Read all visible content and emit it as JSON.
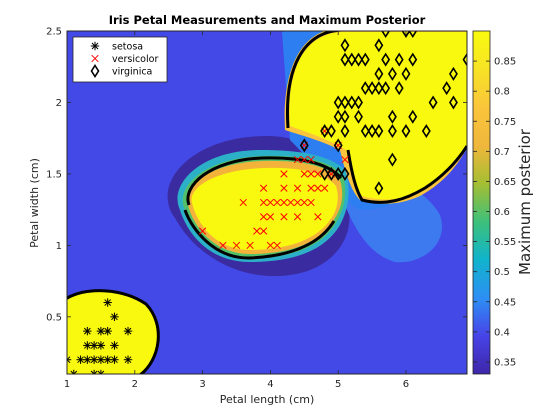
{
  "chart_data": {
    "type": "scatter",
    "title": "Iris Petal Measurements and Maximum Posterior",
    "xlabel": "Petal length (cm)",
    "ylabel": "Petal width (cm)",
    "xlim": [
      1,
      6.9
    ],
    "ylim": [
      0.1,
      2.5
    ],
    "x_ticks": [
      1,
      2,
      3,
      4,
      5,
      6
    ],
    "y_ticks": [
      0.5,
      1,
      1.5,
      2,
      2.5
    ],
    "grid": false,
    "legend_position": "top-left",
    "background_contour": "maximum posterior probability (filled contours)",
    "colorbar": {
      "label": "Maximum posterior",
      "range": [
        0.33,
        0.9
      ],
      "ticks": [
        0.35,
        0.4,
        0.45,
        0.5,
        0.55,
        0.6,
        0.65,
        0.7,
        0.75,
        0.8,
        0.85
      ],
      "colormap": [
        "#3e26a8",
        "#4744e8",
        "#2d8ff4",
        "#10b4cc",
        "#3ec07a",
        "#a5be32",
        "#f0b73c",
        "#fac53b",
        "#f7e325",
        "#f9fb0e"
      ]
    },
    "series": [
      {
        "name": "setosa",
        "marker": "asterisk",
        "color": "#000000",
        "points": [
          [
            1.0,
            0.2
          ],
          [
            1.1,
            0.1
          ],
          [
            1.2,
            0.2
          ],
          [
            1.3,
            0.2
          ],
          [
            1.3,
            0.3
          ],
          [
            1.3,
            0.4
          ],
          [
            1.4,
            0.1
          ],
          [
            1.4,
            0.2
          ],
          [
            1.4,
            0.3
          ],
          [
            1.5,
            0.1
          ],
          [
            1.5,
            0.2
          ],
          [
            1.5,
            0.3
          ],
          [
            1.5,
            0.4
          ],
          [
            1.6,
            0.2
          ],
          [
            1.6,
            0.4
          ],
          [
            1.6,
            0.6
          ],
          [
            1.7,
            0.2
          ],
          [
            1.7,
            0.3
          ],
          [
            1.7,
            0.5
          ],
          [
            1.9,
            0.2
          ],
          [
            1.9,
            0.4
          ]
        ]
      },
      {
        "name": "versicolor",
        "marker": "x",
        "color": "#ff0000",
        "points": [
          [
            3.0,
            1.1
          ],
          [
            3.3,
            1.0
          ],
          [
            3.5,
            1.0
          ],
          [
            3.6,
            1.3
          ],
          [
            3.7,
            1.0
          ],
          [
            3.8,
            1.1
          ],
          [
            3.9,
            1.1
          ],
          [
            3.9,
            1.2
          ],
          [
            3.9,
            1.4
          ],
          [
            4.0,
            1.0
          ],
          [
            4.0,
            1.2
          ],
          [
            4.0,
            1.3
          ],
          [
            4.1,
            1.0
          ],
          [
            4.1,
            1.3
          ],
          [
            4.2,
            1.2
          ],
          [
            4.2,
            1.3
          ],
          [
            4.2,
            1.5
          ],
          [
            4.3,
            1.3
          ],
          [
            4.4,
            1.2
          ],
          [
            4.4,
            1.3
          ],
          [
            4.4,
            1.4
          ],
          [
            4.5,
            1.3
          ],
          [
            4.5,
            1.5
          ],
          [
            4.5,
            1.6
          ],
          [
            4.6,
            1.3
          ],
          [
            4.6,
            1.4
          ],
          [
            4.6,
            1.5
          ],
          [
            4.7,
            1.2
          ],
          [
            4.7,
            1.4
          ],
          [
            4.7,
            1.5
          ],
          [
            4.8,
            1.4
          ],
          [
            4.8,
            1.8
          ],
          [
            4.9,
            1.5
          ],
          [
            5.0,
            1.7
          ],
          [
            5.1,
            1.6
          ],
          [
            4.5,
            1.7
          ],
          [
            4.4,
            1.6
          ],
          [
            4.2,
            1.4
          ],
          [
            3.9,
            1.3
          ],
          [
            4.6,
            1.6
          ]
        ]
      },
      {
        "name": "virginica",
        "marker": "diamond",
        "color": "#000000",
        "points": [
          [
            4.5,
            1.7
          ],
          [
            4.8,
            1.8
          ],
          [
            4.9,
            1.8
          ],
          [
            5.0,
            1.5
          ],
          [
            5.0,
            1.9
          ],
          [
            5.0,
            2.0
          ],
          [
            5.1,
            1.5
          ],
          [
            5.1,
            1.8
          ],
          [
            5.1,
            1.9
          ],
          [
            5.1,
            2.0
          ],
          [
            5.1,
            2.3
          ],
          [
            5.2,
            2.0
          ],
          [
            5.2,
            2.3
          ],
          [
            5.3,
            1.9
          ],
          [
            5.3,
            2.3
          ],
          [
            5.4,
            2.1
          ],
          [
            5.4,
            2.3
          ],
          [
            5.5,
            1.8
          ],
          [
            5.5,
            2.1
          ],
          [
            5.6,
            1.8
          ],
          [
            5.6,
            2.1
          ],
          [
            5.6,
            2.2
          ],
          [
            5.6,
            2.4
          ],
          [
            5.7,
            2.1
          ],
          [
            5.7,
            2.3
          ],
          [
            5.7,
            2.5
          ],
          [
            5.8,
            1.6
          ],
          [
            5.8,
            1.8
          ],
          [
            5.8,
            2.2
          ],
          [
            5.9,
            2.1
          ],
          [
            5.9,
            2.3
          ],
          [
            6.0,
            1.8
          ],
          [
            6.0,
            2.5
          ],
          [
            6.1,
            1.9
          ],
          [
            6.1,
            2.3
          ],
          [
            6.1,
            2.5
          ],
          [
            6.3,
            1.8
          ],
          [
            6.4,
            2.0
          ],
          [
            6.6,
            2.1
          ],
          [
            6.7,
            2.0
          ],
          [
            6.7,
            2.2
          ],
          [
            6.9,
            2.3
          ],
          [
            4.9,
            1.5
          ],
          [
            5.0,
            1.7
          ],
          [
            5.6,
            1.4
          ],
          [
            5.8,
            1.9
          ],
          [
            6.0,
            2.2
          ],
          [
            5.4,
            1.8
          ],
          [
            5.1,
            2.4
          ],
          [
            5.3,
            2.0
          ],
          [
            4.8,
            1.5
          ]
        ]
      }
    ]
  }
}
